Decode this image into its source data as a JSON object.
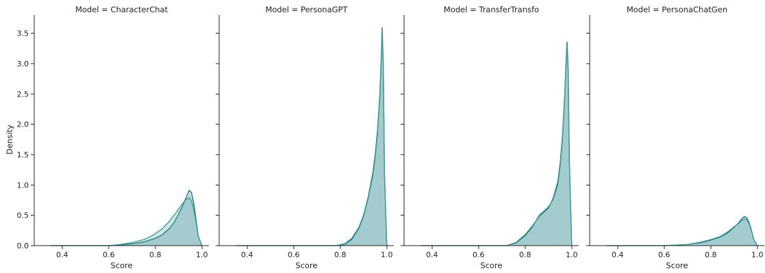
{
  "chart_data": {
    "type": "area",
    "ylabel": "Density",
    "xlabel": "Score",
    "xlim": [
      0.28,
      1.03
    ],
    "ylim": [
      0,
      3.8
    ],
    "xticks": [
      0.4,
      0.6,
      0.8,
      1.0
    ],
    "xtick_labels": [
      "0.4",
      "0.6",
      "0.8",
      "1.0"
    ],
    "yticks": [
      0,
      0.5,
      1.0,
      1.5,
      2.0,
      2.5,
      3.0,
      3.5
    ],
    "ytick_labels": [
      "0.0",
      "0.5",
      "1.0",
      "1.5",
      "2.0",
      "2.5",
      "3.0",
      "3.5"
    ],
    "grid": false,
    "colors": [
      "#1f6f8b",
      "#3a9a8e"
    ],
    "panels": [
      {
        "title": "Model = CharacterChat",
        "series": [
          {
            "x": [
              0.35,
              0.6,
              0.65,
              0.7,
              0.75,
              0.8,
              0.83,
              0.86,
              0.88,
              0.9,
              0.92,
              0.935,
              0.945,
              0.955,
              0.965,
              0.975,
              0.985,
              1.0
            ],
            "y": [
              0,
              0,
              0.01,
              0.03,
              0.06,
              0.12,
              0.18,
              0.28,
              0.38,
              0.52,
              0.68,
              0.82,
              0.91,
              0.88,
              0.7,
              0.42,
              0.15,
              0
            ]
          },
          {
            "x": [
              0.35,
              0.6,
              0.65,
              0.7,
              0.75,
              0.78,
              0.8,
              0.83,
              0.86,
              0.89,
              0.91,
              0.93,
              0.945,
              0.955,
              0.965,
              0.975,
              0.985,
              1.0
            ],
            "y": [
              0,
              0,
              0.02,
              0.05,
              0.1,
              0.15,
              0.2,
              0.28,
              0.4,
              0.55,
              0.66,
              0.75,
              0.79,
              0.74,
              0.6,
              0.38,
              0.15,
              0
            ]
          }
        ]
      },
      {
        "title": "Model = PersonaGPT",
        "series": [
          {
            "x": [
              0.35,
              0.78,
              0.82,
              0.85,
              0.88,
              0.9,
              0.92,
              0.94,
              0.95,
              0.96,
              0.97,
              0.975,
              0.98,
              0.985,
              0.99,
              1.0
            ],
            "y": [
              0,
              0,
              0.03,
              0.12,
              0.3,
              0.5,
              0.8,
              1.2,
              1.5,
              1.9,
              2.5,
              3.0,
              3.6,
              3.0,
              1.2,
              0
            ]
          },
          {
            "x": [
              0.35,
              0.78,
              0.82,
              0.85,
              0.88,
              0.9,
              0.92,
              0.94,
              0.95,
              0.96,
              0.97,
              0.975,
              0.98,
              0.985,
              0.99,
              1.0
            ],
            "y": [
              0,
              0,
              0.02,
              0.1,
              0.28,
              0.48,
              0.78,
              1.15,
              1.45,
              1.85,
              2.45,
              2.95,
              3.55,
              2.95,
              1.15,
              0
            ]
          }
        ]
      },
      {
        "title": "Model = TransferTransfo",
        "series": [
          {
            "x": [
              0.35,
              0.72,
              0.76,
              0.8,
              0.83,
              0.86,
              0.88,
              0.9,
              0.92,
              0.94,
              0.95,
              0.96,
              0.97,
              0.975,
              0.98,
              0.985,
              0.99,
              1.0
            ],
            "y": [
              0,
              0,
              0.05,
              0.18,
              0.32,
              0.48,
              0.55,
              0.62,
              0.78,
              1.05,
              1.35,
              1.8,
              2.5,
              3.0,
              3.36,
              2.9,
              1.4,
              0
            ]
          },
          {
            "x": [
              0.35,
              0.72,
              0.76,
              0.8,
              0.83,
              0.86,
              0.88,
              0.9,
              0.92,
              0.94,
              0.95,
              0.96,
              0.97,
              0.975,
              0.98,
              0.985,
              0.99,
              1.0
            ],
            "y": [
              0,
              0,
              0.04,
              0.16,
              0.3,
              0.5,
              0.57,
              0.64,
              0.76,
              1.0,
              1.3,
              1.75,
              2.45,
              2.95,
              3.3,
              2.85,
              1.35,
              0
            ]
          }
        ]
      },
      {
        "title": "Model = PersonaChatGen",
        "series": [
          {
            "x": [
              0.35,
              0.6,
              0.7,
              0.76,
              0.8,
              0.84,
              0.87,
              0.9,
              0.92,
              0.935,
              0.945,
              0.955,
              0.965,
              0.975,
              0.985,
              1.0
            ],
            "y": [
              0,
              0,
              0.02,
              0.05,
              0.09,
              0.14,
              0.2,
              0.3,
              0.38,
              0.45,
              0.48,
              0.46,
              0.38,
              0.25,
              0.1,
              0
            ]
          },
          {
            "x": [
              0.35,
              0.6,
              0.7,
              0.76,
              0.8,
              0.84,
              0.87,
              0.9,
              0.92,
              0.935,
              0.945,
              0.955,
              0.965,
              0.975,
              0.985,
              1.0
            ],
            "y": [
              0,
              0,
              0.02,
              0.06,
              0.1,
              0.15,
              0.22,
              0.31,
              0.37,
              0.42,
              0.44,
              0.43,
              0.36,
              0.24,
              0.1,
              0
            ]
          }
        ]
      }
    ]
  }
}
